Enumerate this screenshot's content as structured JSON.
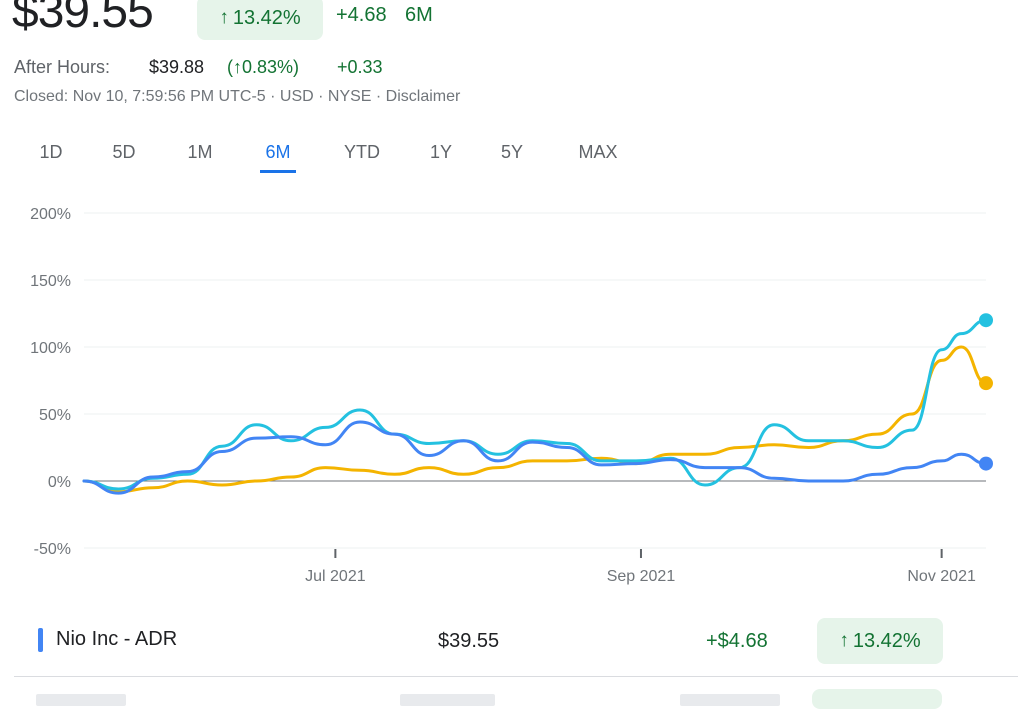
{
  "header": {
    "price": "$39.55",
    "change_pct": "13.42%",
    "change_abs": "+4.68",
    "period": "6M",
    "after_hours_label": "After Hours:",
    "after_hours_price": "$39.88",
    "after_hours_pct": "(↑0.83%)",
    "after_hours_delta": "+0.33",
    "closed_line": "Closed: Nov 10, 7:59:56 PM UTC-5 · USD · NYSE · Disclaimer"
  },
  "tabs": [
    {
      "label": "1D"
    },
    {
      "label": "5D"
    },
    {
      "label": "1M"
    },
    {
      "label": "6M",
      "active": true
    },
    {
      "label": "YTD"
    },
    {
      "label": "1Y"
    },
    {
      "label": "5Y"
    },
    {
      "label": "MAX"
    }
  ],
  "colors": {
    "nio": "#4285f4",
    "compare_cyan": "#24c1e0",
    "compare_yellow": "#f4b400",
    "positive": "#137333",
    "positive_bg": "#e6f4ea",
    "active_tab": "#1a73e8"
  },
  "chart_data": {
    "type": "line",
    "x": [
      "2021-05-11",
      "2021-05-18",
      "2021-05-25",
      "2021-06-01",
      "2021-06-08",
      "2021-06-15",
      "2021-06-22",
      "2021-06-29",
      "2021-07-06",
      "2021-07-13",
      "2021-07-20",
      "2021-07-27",
      "2021-08-03",
      "2021-08-10",
      "2021-08-17",
      "2021-08-24",
      "2021-08-31",
      "2021-09-07",
      "2021-09-14",
      "2021-09-21",
      "2021-09-28",
      "2021-10-05",
      "2021-10-12",
      "2021-10-19",
      "2021-10-26",
      "2021-11-01",
      "2021-11-05",
      "2021-11-10"
    ],
    "series": [
      {
        "color": "#4285f4",
        "values": [
          0,
          -9,
          3,
          7,
          22,
          32,
          33,
          27,
          44,
          35,
          19,
          30,
          15,
          29,
          25,
          12,
          13,
          16,
          10,
          10,
          2,
          0,
          0,
          5,
          10,
          15,
          20,
          13
        ]
      },
      {
        "color": "#24c1e0",
        "values": [
          0,
          -6,
          2,
          5,
          26,
          42,
          30,
          40,
          53,
          35,
          28,
          30,
          20,
          30,
          28,
          15,
          15,
          17,
          -3,
          10,
          42,
          30,
          30,
          25,
          38,
          98,
          110,
          120
        ]
      },
      {
        "color": "#f4b400",
        "values": [
          0,
          -8,
          -5,
          0,
          -3,
          0,
          3,
          10,
          8,
          5,
          10,
          5,
          10,
          15,
          15,
          17,
          13,
          20,
          20,
          25,
          27,
          25,
          30,
          35,
          50,
          90,
          100,
          73
        ]
      }
    ],
    "ylim": [
      -50,
      200
    ],
    "yticks": [
      "200%",
      "150%",
      "100%",
      "50%",
      "0%",
      "-50%"
    ],
    "xticks": [
      "Jul 2021",
      "Sep 2021",
      "Nov 2021"
    ],
    "grid": true
  },
  "legend_row": {
    "name": "Nio Inc - ADR",
    "price": "$39.55",
    "delta": "+$4.68",
    "pct": "13.42%"
  }
}
